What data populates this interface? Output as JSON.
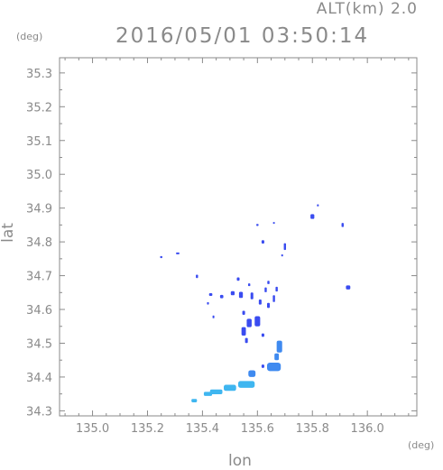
{
  "header": {
    "alt_label": "ALT(km) 2.0",
    "timestamp": "2016/05/01 03:50:14"
  },
  "chart_data": {
    "type": "scatter",
    "title": "2016/05/01 03:50:14",
    "xlabel": "lon",
    "ylabel": "lat",
    "x_unit": "(deg)",
    "y_unit": "(deg)",
    "xlim": [
      134.88,
      136.18
    ],
    "ylim": [
      34.285,
      35.345
    ],
    "x_ticks": [
      "135.0",
      "135.2",
      "135.4",
      "135.6",
      "135.8",
      "136.0"
    ],
    "y_ticks": [
      "34.3",
      "34.4",
      "34.5",
      "34.6",
      "34.7",
      "34.8",
      "34.9",
      "35.0",
      "35.1",
      "35.2",
      "35.3"
    ],
    "grid": false,
    "colors": {
      "axis": "#8a8a8a",
      "strong": "#3a4cf0",
      "light": "#3fb6f0",
      "mid": "#3f8af0"
    },
    "points": [
      {
        "lon": 135.25,
        "lat": 34.755,
        "w": 0.008,
        "h": 0.006,
        "c": "strong"
      },
      {
        "lon": 135.31,
        "lat": 34.766,
        "w": 0.012,
        "h": 0.005,
        "c": "strong"
      },
      {
        "lon": 135.38,
        "lat": 34.698,
        "w": 0.008,
        "h": 0.01,
        "c": "strong"
      },
      {
        "lon": 135.43,
        "lat": 34.644,
        "w": 0.012,
        "h": 0.008,
        "c": "strong"
      },
      {
        "lon": 135.47,
        "lat": 34.638,
        "w": 0.012,
        "h": 0.01,
        "c": "strong"
      },
      {
        "lon": 135.42,
        "lat": 34.618,
        "w": 0.007,
        "h": 0.007,
        "c": "strong"
      },
      {
        "lon": 135.44,
        "lat": 34.578,
        "w": 0.006,
        "h": 0.008,
        "c": "strong"
      },
      {
        "lon": 135.51,
        "lat": 34.648,
        "w": 0.014,
        "h": 0.012,
        "c": "strong"
      },
      {
        "lon": 135.54,
        "lat": 34.643,
        "w": 0.014,
        "h": 0.018,
        "c": "strong"
      },
      {
        "lon": 135.53,
        "lat": 34.69,
        "w": 0.01,
        "h": 0.01,
        "c": "strong"
      },
      {
        "lon": 135.57,
        "lat": 34.673,
        "w": 0.008,
        "h": 0.008,
        "c": "strong"
      },
      {
        "lon": 135.58,
        "lat": 34.64,
        "w": 0.01,
        "h": 0.02,
        "c": "strong"
      },
      {
        "lon": 135.61,
        "lat": 34.622,
        "w": 0.01,
        "h": 0.015,
        "c": "strong"
      },
      {
        "lon": 135.63,
        "lat": 34.658,
        "w": 0.008,
        "h": 0.014,
        "c": "strong"
      },
      {
        "lon": 135.64,
        "lat": 34.612,
        "w": 0.01,
        "h": 0.015,
        "c": "strong"
      },
      {
        "lon": 135.66,
        "lat": 34.632,
        "w": 0.008,
        "h": 0.02,
        "c": "strong"
      },
      {
        "lon": 135.67,
        "lat": 34.66,
        "w": 0.008,
        "h": 0.014,
        "c": "strong"
      },
      {
        "lon": 135.64,
        "lat": 34.68,
        "w": 0.008,
        "h": 0.01,
        "c": "strong"
      },
      {
        "lon": 135.55,
        "lat": 34.59,
        "w": 0.01,
        "h": 0.012,
        "c": "strong"
      },
      {
        "lon": 135.57,
        "lat": 34.56,
        "w": 0.018,
        "h": 0.025,
        "c": "strong"
      },
      {
        "lon": 135.6,
        "lat": 34.565,
        "w": 0.02,
        "h": 0.03,
        "c": "strong"
      },
      {
        "lon": 135.55,
        "lat": 34.535,
        "w": 0.016,
        "h": 0.025,
        "c": "strong"
      },
      {
        "lon": 135.56,
        "lat": 34.508,
        "w": 0.01,
        "h": 0.015,
        "c": "strong"
      },
      {
        "lon": 135.62,
        "lat": 34.524,
        "w": 0.01,
        "h": 0.01,
        "c": "strong"
      },
      {
        "lon": 135.68,
        "lat": 34.49,
        "w": 0.02,
        "h": 0.035,
        "c": "mid"
      },
      {
        "lon": 135.67,
        "lat": 34.46,
        "w": 0.016,
        "h": 0.02,
        "c": "mid"
      },
      {
        "lon": 135.66,
        "lat": 34.43,
        "w": 0.05,
        "h": 0.025,
        "c": "mid"
      },
      {
        "lon": 135.62,
        "lat": 34.432,
        "w": 0.01,
        "h": 0.01,
        "c": "strong"
      },
      {
        "lon": 135.58,
        "lat": 34.41,
        "w": 0.026,
        "h": 0.02,
        "c": "mid"
      },
      {
        "lon": 135.56,
        "lat": 34.378,
        "w": 0.06,
        "h": 0.02,
        "c": "light"
      },
      {
        "lon": 135.5,
        "lat": 34.368,
        "w": 0.045,
        "h": 0.018,
        "c": "light"
      },
      {
        "lon": 135.45,
        "lat": 34.356,
        "w": 0.045,
        "h": 0.014,
        "c": "light"
      },
      {
        "lon": 135.42,
        "lat": 34.35,
        "w": 0.03,
        "h": 0.012,
        "c": "light"
      },
      {
        "lon": 135.37,
        "lat": 34.33,
        "w": 0.02,
        "h": 0.01,
        "c": "light"
      },
      {
        "lon": 135.6,
        "lat": 34.85,
        "w": 0.008,
        "h": 0.006,
        "c": "strong"
      },
      {
        "lon": 135.62,
        "lat": 34.8,
        "w": 0.01,
        "h": 0.01,
        "c": "strong"
      },
      {
        "lon": 135.66,
        "lat": 34.856,
        "w": 0.004,
        "h": 0.004,
        "c": "strong"
      },
      {
        "lon": 135.7,
        "lat": 34.786,
        "w": 0.008,
        "h": 0.02,
        "c": "strong"
      },
      {
        "lon": 135.69,
        "lat": 34.76,
        "w": 0.004,
        "h": 0.006,
        "c": "strong"
      },
      {
        "lon": 135.8,
        "lat": 34.875,
        "w": 0.014,
        "h": 0.014,
        "c": "strong"
      },
      {
        "lon": 135.82,
        "lat": 34.908,
        "w": 0.006,
        "h": 0.006,
        "c": "strong"
      },
      {
        "lon": 135.91,
        "lat": 34.85,
        "w": 0.008,
        "h": 0.012,
        "c": "strong"
      },
      {
        "lon": 135.93,
        "lat": 34.665,
        "w": 0.016,
        "h": 0.012,
        "c": "strong"
      }
    ]
  }
}
